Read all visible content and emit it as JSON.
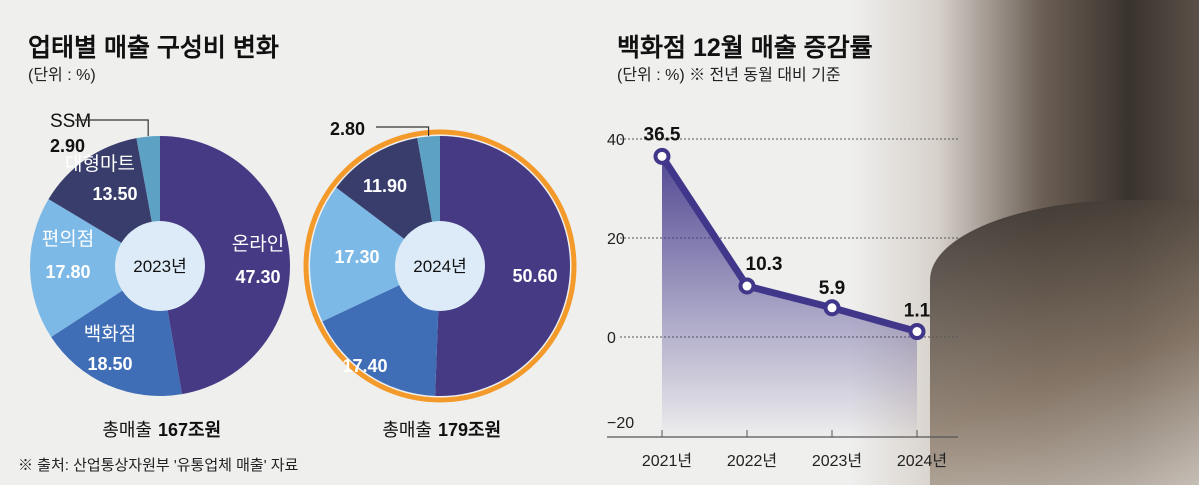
{
  "chart_data": [
    {
      "type": "pie",
      "title": "업태별 매출 구성비 변화",
      "subtitle": "(단위 : %)",
      "center_label": "2023년",
      "total_label": "총매출",
      "total_value": "167조원",
      "slices": [
        {
          "name": "온라인",
          "value": 47.3,
          "label": "47.30",
          "color": "#463a84"
        },
        {
          "name": "백화점",
          "value": 18.5,
          "label": "18.50",
          "color": "#3f6eb6"
        },
        {
          "name": "편의점",
          "value": 17.8,
          "label": "17.80",
          "color": "#7cb9e6"
        },
        {
          "name": "대형마트",
          "value": 13.5,
          "label": "13.50",
          "color": "#383d6b"
        },
        {
          "name": "SSM",
          "value": 2.9,
          "label": "2.90",
          "color": "#5da2c4"
        }
      ]
    },
    {
      "type": "pie",
      "center_label": "2024년",
      "total_label": "총매출",
      "total_value": "179조원",
      "ring_color": "#f39a2b",
      "slices": [
        {
          "name": "온라인",
          "value": 50.6,
          "label": "50.60",
          "color": "#463a84"
        },
        {
          "name": "백화점",
          "value": 17.4,
          "label": "17.40",
          "color": "#3f6eb6"
        },
        {
          "name": "편의점",
          "value": 17.3,
          "label": "17.30",
          "color": "#7cb9e6"
        },
        {
          "name": "대형마트",
          "value": 11.9,
          "label": "11.90",
          "color": "#383d6b"
        },
        {
          "name": "SSM",
          "value": 2.8,
          "label": "2.80",
          "color": "#5da2c4"
        }
      ]
    },
    {
      "type": "line",
      "title": "백화점 12월 매출 증감률",
      "subtitle": "(단위 : %) ※ 전년 동월 대비 기준",
      "categories": [
        "2021년",
        "2022년",
        "2023년",
        "2024년"
      ],
      "values": [
        36.5,
        10.3,
        5.9,
        1.1
      ],
      "data_labels": [
        "36.5",
        "10.3",
        "5.9",
        "1.1"
      ],
      "ylim": [
        -20,
        40
      ],
      "yticks": [
        "40",
        "20",
        "0",
        "−20"
      ],
      "grid": true,
      "color": "#41378a"
    }
  ],
  "source": "※ 출처: 산업통상자원부 '유통업체 매출' 자료"
}
